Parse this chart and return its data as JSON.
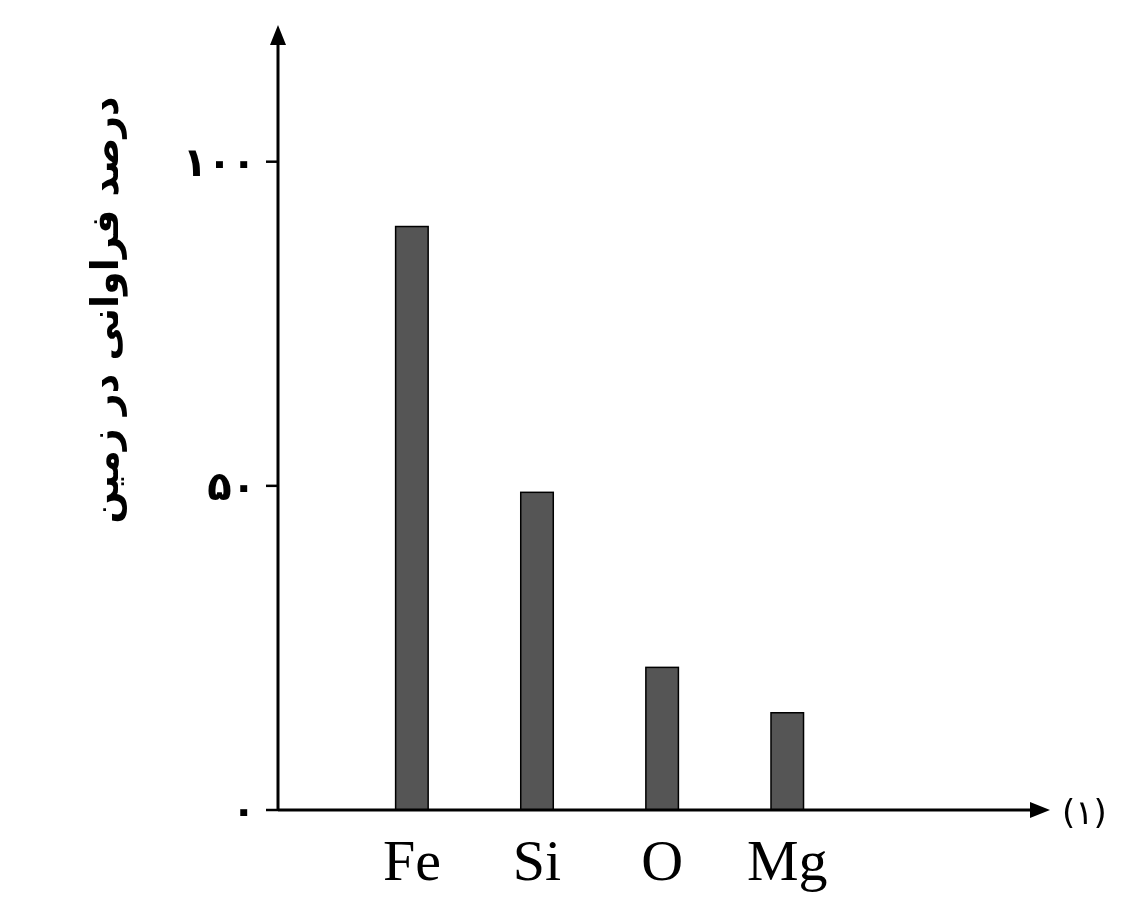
{
  "chart_data": {
    "type": "bar",
    "ylabel": "درصد فراوانی در زمین",
    "categories": [
      "Fe",
      "Si",
      "O",
      "Mg"
    ],
    "values": [
      90,
      49,
      22,
      15
    ],
    "color": "#555555",
    "ylim": [
      0,
      118
    ],
    "yticks": [
      {
        "value": 0,
        "label": "۰"
      },
      {
        "value": 50,
        "label": "۵۰"
      },
      {
        "value": 100,
        "label": "۱۰۰"
      }
    ],
    "annotations": [
      "(۱)"
    ]
  }
}
